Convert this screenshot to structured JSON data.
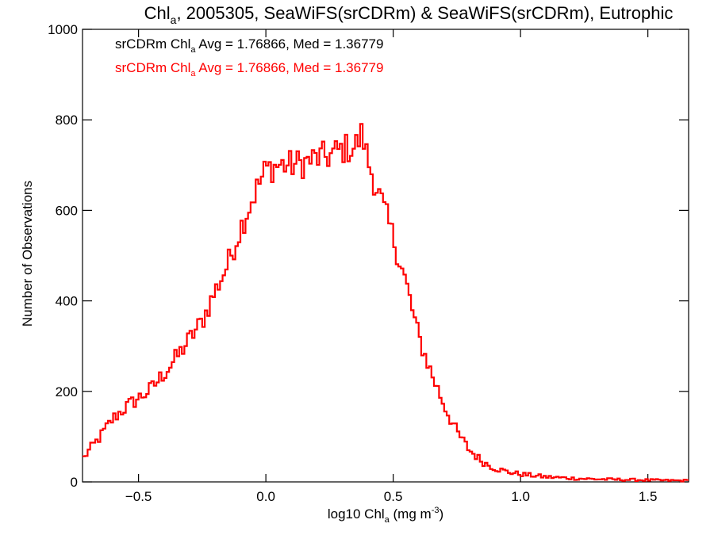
{
  "chart_data": {
    "type": "histogram",
    "title": {
      "prefix": "Chl",
      "sub": "a",
      "rest": ", 2005305, SeaWiFS(srCDRm) & SeaWiFS(srCDRm), Eutrophic"
    },
    "xlabel": {
      "prefix": "log10 Chl",
      "sub": "a",
      "mid": " (mg m",
      "sup": "-3",
      "suffix": ")"
    },
    "ylabel": "Number of Observations",
    "xlim": [
      -0.72,
      1.66
    ],
    "ylim": [
      0,
      1000
    ],
    "x_ticks": [
      -0.5,
      0.0,
      0.5,
      1.0,
      1.5
    ],
    "x_tick_labels": [
      "−0.5",
      "0.0",
      "0.5",
      "1.0",
      "1.5"
    ],
    "y_ticks": [
      0,
      200,
      400,
      600,
      800,
      1000
    ],
    "y_tick_labels": [
      "0",
      "200",
      "400",
      "600",
      "800",
      "1000"
    ],
    "annotations": [
      {
        "prefix": "srCDRm Chl",
        "sub": "a",
        "rest": " Avg = 1.76866, Med = 1.36779",
        "color": "#000000"
      },
      {
        "prefix": "srCDRm Chl",
        "sub": "a",
        "rest": " Avg = 1.76866, Med = 1.36779",
        "color": "#ff0000"
      }
    ],
    "series": [
      {
        "color": "#ff0000",
        "x": [
          -0.72,
          -0.7,
          -0.65,
          -0.6,
          -0.55,
          -0.5,
          -0.45,
          -0.4,
          -0.35,
          -0.3,
          -0.25,
          -0.2,
          -0.15,
          -0.1,
          -0.05,
          0.0,
          0.05,
          0.1,
          0.15,
          0.2,
          0.25,
          0.3,
          0.35,
          0.38,
          0.4,
          0.45,
          0.5,
          0.55,
          0.6,
          0.65,
          0.7,
          0.75,
          0.8,
          0.85,
          0.9,
          0.95,
          1.0,
          1.1,
          1.2,
          1.3,
          1.4,
          1.5,
          1.6,
          1.66
        ],
        "y": [
          50,
          65,
          100,
          140,
          165,
          185,
          205,
          240,
          275,
          315,
          355,
          420,
          480,
          560,
          630,
          690,
          700,
          700,
          705,
          715,
          720,
          735,
          740,
          770,
          710,
          625,
          540,
          440,
          320,
          240,
          170,
          110,
          70,
          45,
          30,
          22,
          17,
          11,
          8,
          6,
          5,
          4,
          3,
          3
        ]
      }
    ]
  }
}
